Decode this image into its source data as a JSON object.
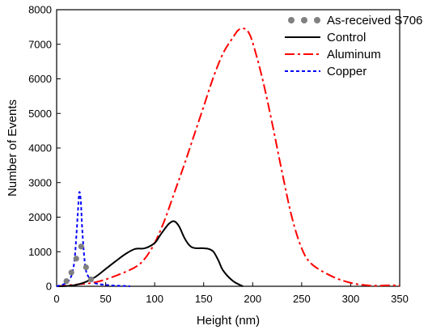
{
  "chart_data": {
    "type": "line",
    "title": "",
    "xlabel": "Height (nm)",
    "ylabel": "Number of Events",
    "xlim": [
      0,
      350
    ],
    "ylim": [
      0,
      8000
    ],
    "x_ticks": [
      0,
      50,
      100,
      150,
      200,
      250,
      300,
      350
    ],
    "y_ticks": [
      0,
      1000,
      2000,
      3000,
      4000,
      5000,
      6000,
      7000,
      8000
    ],
    "grid": false,
    "legend_position": "top-right",
    "series": [
      {
        "name": "As-received S706",
        "style": "dots",
        "color": "#808080",
        "x": [
          10,
          15,
          20,
          25,
          30,
          35
        ],
        "y": [
          150,
          400,
          800,
          1150,
          550,
          200
        ]
      },
      {
        "name": "Control",
        "style": "solid",
        "color": "#000000",
        "x": [
          0,
          10,
          20,
          30,
          40,
          50,
          60,
          70,
          80,
          90,
          100,
          105,
          110,
          115,
          120,
          125,
          130,
          135,
          140,
          150,
          155,
          160,
          165,
          170,
          180,
          190
        ],
        "y": [
          0,
          10,
          40,
          130,
          280,
          500,
          720,
          930,
          1080,
          1100,
          1250,
          1450,
          1650,
          1820,
          1880,
          1730,
          1420,
          1200,
          1110,
          1100,
          1080,
          1000,
          750,
          450,
          150,
          0
        ]
      },
      {
        "name": "Aluminum",
        "style": "dashdot",
        "color": "#ff0000",
        "x": [
          0,
          20,
          40,
          60,
          80,
          90,
          100,
          110,
          120,
          130,
          140,
          150,
          160,
          170,
          180,
          185,
          190,
          195,
          200,
          210,
          220,
          230,
          240,
          250,
          260,
          280,
          300,
          320,
          340,
          350
        ],
        "y": [
          0,
          50,
          120,
          300,
          550,
          800,
          1250,
          1900,
          2700,
          3500,
          4350,
          5200,
          6050,
          6750,
          7200,
          7400,
          7460,
          7380,
          7050,
          6000,
          4700,
          3300,
          2000,
          1100,
          650,
          300,
          100,
          20,
          30,
          20
        ]
      },
      {
        "name": "Copper",
        "style": "dashed",
        "color": "#0000ff",
        "x": [
          0,
          10,
          15,
          18,
          20,
          22,
          23,
          24,
          25,
          26,
          28,
          30,
          33,
          36,
          40,
          50,
          60,
          70,
          75
        ],
        "y": [
          0,
          100,
          300,
          700,
          1400,
          2300,
          2700,
          2650,
          2300,
          1700,
          900,
          450,
          250,
          150,
          80,
          40,
          20,
          10,
          0
        ]
      }
    ]
  }
}
